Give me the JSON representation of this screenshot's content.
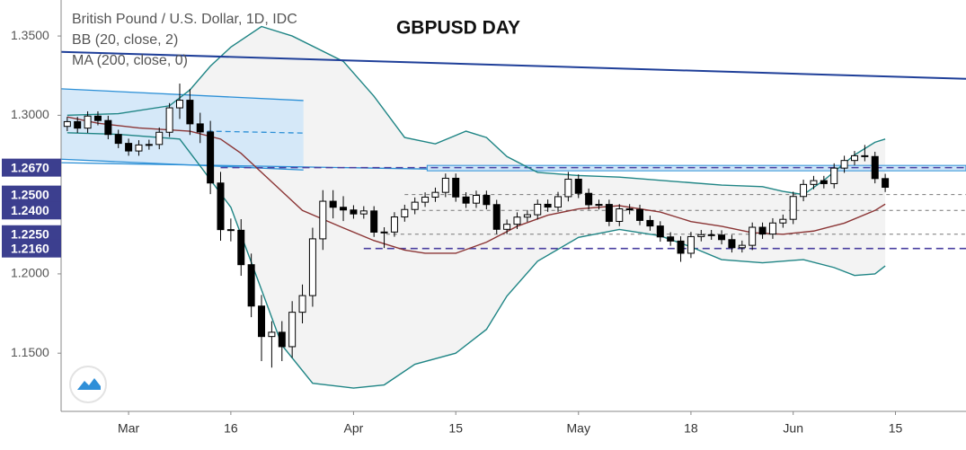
{
  "chart_data": {
    "type": "candlestick",
    "title": "GBPUSD DAY",
    "legend_lines": [
      "British Pound / U.S. Dollar, 1D, IDC",
      "BB (20, close, 2)",
      "MA (200, close, 0)"
    ],
    "up_color": "#ffffff",
    "down_color": "#000000",
    "outline_color": "#000000",
    "open": [
      1.293,
      1.296,
      1.2919,
      1.2995,
      1.2967,
      1.2879,
      1.2823,
      1.2775,
      1.2813,
      1.2816,
      1.2893,
      1.3047,
      1.3095,
      1.2946,
      1.2895,
      1.2573,
      1.2279,
      1.2275,
      1.2058,
      1.1797,
      1.1605,
      1.1632,
      1.1541,
      1.1758,
      1.1863,
      1.2221,
      1.2458,
      1.242,
      1.2403,
      1.2378,
      1.2397,
      1.2263,
      1.2264,
      1.2359,
      1.2406,
      1.2452,
      1.2484,
      1.2514,
      1.2603,
      1.2485,
      1.2446,
      1.2495,
      1.2437,
      1.2281,
      1.2313,
      1.2358,
      1.2373,
      1.2439,
      1.2421,
      1.2487,
      1.2597,
      1.2508,
      1.2436,
      1.2438,
      1.2331,
      1.241,
      1.2406,
      1.2337,
      1.2302,
      1.2233,
      1.2207,
      1.213,
      1.2235,
      1.2247,
      1.2245,
      1.2216,
      1.2165,
      1.218,
      1.2294,
      1.2251,
      1.2321,
      1.2344,
      1.2488,
      1.2564,
      1.2588,
      1.2569,
      1.2667,
      1.2715,
      1.2745,
      1.274,
      1.2601
    ],
    "high": [
      1.299,
      1.299,
      1.3025,
      1.3025,
      1.2997,
      1.2909,
      1.2853,
      1.2843,
      1.2846,
      1.2923,
      1.3077,
      1.32,
      1.3165,
      1.3016,
      1.2965,
      1.2643,
      1.2349,
      1.2345,
      1.2128,
      1.1867,
      1.1702,
      1.1702,
      1.1828,
      1.1933,
      1.2291,
      1.2528,
      1.2528,
      1.249,
      1.2433,
      1.2427,
      1.2427,
      1.2294,
      1.2389,
      1.2436,
      1.2482,
      1.2514,
      1.2544,
      1.2633,
      1.2633,
      1.2515,
      1.2525,
      1.2525,
      1.2467,
      1.2343,
      1.2388,
      1.2403,
      1.2469,
      1.2469,
      1.2517,
      1.2643,
      1.2627,
      1.2538,
      1.2468,
      1.2468,
      1.244,
      1.244,
      1.2436,
      1.2367,
      1.2332,
      1.2263,
      1.2237,
      1.2265,
      1.2277,
      1.2277,
      1.2275,
      1.2246,
      1.221,
      1.2324,
      1.2324,
      1.2351,
      1.2374,
      1.2518,
      1.2594,
      1.2618,
      1.2618,
      1.2697,
      1.2745,
      1.2775,
      1.2813,
      1.277,
      1.2631
    ],
    "low": [
      1.29,
      1.2889,
      1.2889,
      1.2937,
      1.2849,
      1.2793,
      1.2745,
      1.2745,
      1.2783,
      1.2786,
      1.2863,
      1.2977,
      1.2876,
      1.2825,
      1.2503,
      1.2209,
      1.2205,
      1.1988,
      1.1727,
      1.145,
      1.1409,
      1.145,
      1.1471,
      1.1688,
      1.1793,
      1.2151,
      1.235,
      1.2333,
      1.2348,
      1.2348,
      1.2233,
      1.2163,
      1.2234,
      1.2329,
      1.2376,
      1.2422,
      1.2454,
      1.2484,
      1.2455,
      1.2416,
      1.2416,
      1.2407,
      1.2251,
      1.2251,
      1.2283,
      1.2328,
      1.2343,
      1.2391,
      1.2391,
      1.2457,
      1.2478,
      1.2406,
      1.2406,
      1.2301,
      1.2301,
      1.2376,
      1.2307,
      1.2272,
      1.2203,
      1.2177,
      1.2076,
      1.21,
      1.2205,
      1.2215,
      1.2186,
      1.2135,
      1.2135,
      1.215,
      1.2221,
      1.2221,
      1.2291,
      1.2314,
      1.2458,
      1.2534,
      1.2539,
      1.2539,
      1.2637,
      1.2685,
      1.271,
      1.2571,
      1.2516
    ],
    "close": [
      1.296,
      1.2919,
      1.2995,
      1.2967,
      1.2879,
      1.2823,
      1.2775,
      1.2813,
      1.2816,
      1.2893,
      1.3047,
      1.3095,
      1.2946,
      1.2895,
      1.2573,
      1.2279,
      1.2275,
      1.2058,
      1.1797,
      1.1605,
      1.1632,
      1.1541,
      1.1758,
      1.1863,
      1.2221,
      1.2458,
      1.242,
      1.2403,
      1.2378,
      1.2397,
      1.2263,
      1.2264,
      1.2359,
      1.2406,
      1.2452,
      1.2484,
      1.2514,
      1.2603,
      1.2485,
      1.2446,
      1.2495,
      1.2437,
      1.2281,
      1.2313,
      1.2358,
      1.2373,
      1.2439,
      1.2421,
      1.2487,
      1.2597,
      1.2508,
      1.2436,
      1.2438,
      1.2331,
      1.241,
      1.2406,
      1.2337,
      1.2302,
      1.2233,
      1.2207,
      1.213,
      1.2235,
      1.2247,
      1.2245,
      1.2216,
      1.2165,
      1.218,
      1.2294,
      1.2251,
      1.2321,
      1.2344,
      1.2488,
      1.2564,
      1.2588,
      1.2569,
      1.2667,
      1.2715,
      1.2745,
      1.274,
      1.2601,
      1.2546
    ],
    "xlim": [
      -0.6,
      87.9
    ],
    "xticks": [
      {
        "value": 6,
        "label": "Mar"
      },
      16,
      {
        "value": 28,
        "label": "Apr"
      },
      {
        "value": 38,
        "label": "15"
      },
      {
        "value": 50,
        "label": "May"
      },
      {
        "value": 61,
        "label": "18"
      },
      {
        "value": 71,
        "label": "Jun"
      },
      {
        "value": 81,
        "label": "15"
      }
    ],
    "ylim": [
      1.1133,
      1.3727
    ],
    "yticks": [
      {
        "value": 1.35,
        "label": "1.3500"
      },
      {
        "value": 1.3,
        "label": "1.3000"
      },
      {
        "value": 1.2,
        "label": "1.2000"
      },
      {
        "value": 1.15,
        "label": "1.1500"
      }
    ],
    "grid": false,
    "levels": [
      {
        "value": 1.267,
        "label": "1.2670",
        "start": 15,
        "color": "#4a3fa0"
      },
      {
        "value": 1.25,
        "label": "1.2500",
        "start": 33,
        "color": "#777777"
      },
      {
        "value": 1.24,
        "label": "1.2400",
        "start": 34.7,
        "color": "#777777"
      },
      {
        "value": 1.225,
        "label": "1.2250",
        "start": 31.2,
        "color": "#777777"
      },
      {
        "value": 1.216,
        "label": "1.2160",
        "start": 29,
        "color": "#4a3fa0"
      }
    ],
    "level_label_color": "#3c3f8f",
    "bollinger": {
      "color": "#1f8585",
      "basis_color": "#8b3535",
      "fill": "#f3f3f3",
      "upper": {
        "x": [
          0,
          5,
          10,
          12,
          14,
          16,
          19,
          22,
          27,
          30,
          33,
          36,
          39,
          41,
          43,
          46,
          50,
          54,
          60,
          64,
          68,
          70,
          72,
          74,
          77,
          79,
          80
        ],
        "values": [
          1.3,
          1.301,
          1.306,
          1.316,
          1.331,
          1.343,
          1.356,
          1.35,
          1.334,
          1.312,
          1.286,
          1.282,
          1.29,
          1.286,
          1.274,
          1.264,
          1.262,
          1.261,
          1.258,
          1.256,
          1.255,
          1.252,
          1.25,
          1.259,
          1.275,
          1.283,
          1.285
        ]
      },
      "basis": {
        "x": [
          0,
          3,
          7,
          12,
          15,
          17,
          20,
          23,
          27,
          30,
          33,
          35,
          38,
          41,
          44,
          47,
          50,
          54,
          58,
          61,
          64,
          67,
          70,
          73,
          76,
          79,
          80
        ],
        "values": [
          1.299,
          1.295,
          1.292,
          1.29,
          1.285,
          1.276,
          1.258,
          1.24,
          1.229,
          1.221,
          1.215,
          1.213,
          1.213,
          1.22,
          1.23,
          1.237,
          1.241,
          1.243,
          1.239,
          1.233,
          1.23,
          1.226,
          1.225,
          1.227,
          1.232,
          1.24,
          1.244
        ]
      },
      "lower": {
        "x": [
          0,
          5,
          11,
          13,
          16,
          19,
          21,
          24,
          28,
          31,
          34,
          38,
          41,
          43,
          46,
          50,
          54,
          58,
          61,
          64,
          68,
          72,
          75,
          77,
          79,
          80
        ],
        "values": [
          1.289,
          1.288,
          1.285,
          1.268,
          1.242,
          1.19,
          1.155,
          1.131,
          1.128,
          1.13,
          1.143,
          1.15,
          1.165,
          1.186,
          1.208,
          1.223,
          1.228,
          1.224,
          1.217,
          1.209,
          1.207,
          1.209,
          1.204,
          1.199,
          1.2,
          1.205
        ]
      }
    },
    "ma": {
      "x": [
        -0.6,
        87.9
      ],
      "values": [
        1.34,
        1.323
      ],
      "color": "#1f3f99"
    },
    "channel": {
      "x": [
        -0.6,
        23.1
      ],
      "upper": [
        1.3167,
        1.3093
      ],
      "lower": [
        1.2723,
        1.2655
      ],
      "mid_x": [
        13.7,
        23.1
      ],
      "mid": [
        1.29,
        1.2888
      ],
      "fill": "#cfe5f8",
      "color": "#2b8fd6"
    },
    "trendline": {
      "x": [
        -0.6,
        35.2
      ],
      "values": [
        1.2701,
        1.2661
      ],
      "color": "#2b8fd6"
    },
    "zone": {
      "x": [
        35.2,
        87.9
      ],
      "values": [
        1.2684,
        1.265
      ],
      "fill": "#cfe5f8",
      "color": "#2b8fd6"
    }
  }
}
